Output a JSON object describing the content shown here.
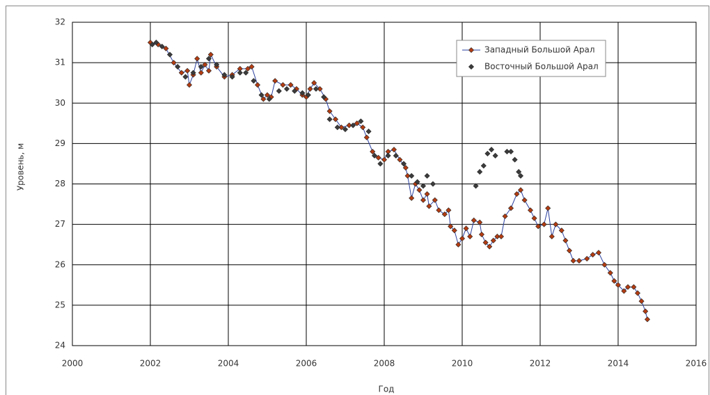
{
  "chart_data": {
    "type": "scatter",
    "xlabel": "Год",
    "ylabel": "Уровень, м",
    "xlim": [
      2000,
      2016
    ],
    "xticks": [
      2000,
      2002,
      2004,
      2006,
      2008,
      2010,
      2012,
      2014,
      2016
    ],
    "ylim": [
      24,
      32
    ],
    "yticks": [
      24,
      25,
      26,
      27,
      28,
      29,
      30,
      31,
      32
    ],
    "grid": true,
    "legend": "upper right",
    "series": [
      {
        "name": "Западный Большой Арал",
        "color": "#2a3f9e",
        "marker_color": "#b33c12",
        "line": true,
        "x": [
          2002.0,
          2002.2,
          2002.4,
          2002.6,
          2002.8,
          2002.95,
          2003.0,
          2003.1,
          2003.2,
          2003.3,
          2003.4,
          2003.5,
          2003.55,
          2003.7,
          2003.9,
          2004.1,
          2004.3,
          2004.5,
          2004.6,
          2004.75,
          2004.9,
          2005.0,
          2005.1,
          2005.2,
          2005.4,
          2005.6,
          2005.75,
          2005.9,
          2006.0,
          2006.1,
          2006.2,
          2006.35,
          2006.5,
          2006.6,
          2006.75,
          2006.9,
          2007.1,
          2007.3,
          2007.45,
          2007.55,
          2007.7,
          2007.85,
          2008.0,
          2008.1,
          2008.25,
          2008.4,
          2008.55,
          2008.6,
          2008.7,
          2008.8,
          2008.9,
          2009.0,
          2009.1,
          2009.15,
          2009.3,
          2009.4,
          2009.55,
          2009.65,
          2009.7,
          2009.8,
          2009.9,
          2010.0,
          2010.1,
          2010.2,
          2010.3,
          2010.45,
          2010.5,
          2010.6,
          2010.7,
          2010.8,
          2010.9,
          2011.0,
          2011.1,
          2011.25,
          2011.4,
          2011.5,
          2011.6,
          2011.75,
          2011.85,
          2011.95,
          2012.1,
          2012.2,
          2012.3,
          2012.4,
          2012.55,
          2012.65,
          2012.75,
          2012.85,
          2013.0,
          2013.2,
          2013.35,
          2013.5,
          2013.65,
          2013.8,
          2013.9,
          2014.0,
          2014.15,
          2014.25,
          2014.4,
          2014.5,
          2014.6,
          2014.7,
          2014.75
        ],
        "values": [
          31.5,
          31.45,
          31.35,
          31.0,
          30.75,
          30.8,
          30.45,
          30.7,
          31.1,
          30.75,
          30.95,
          30.8,
          31.2,
          30.9,
          30.65,
          30.7,
          30.85,
          30.85,
          30.9,
          30.45,
          30.1,
          30.2,
          30.15,
          30.55,
          30.45,
          30.45,
          30.35,
          30.2,
          30.15,
          30.35,
          30.5,
          30.35,
          30.1,
          29.8,
          29.6,
          29.4,
          29.45,
          29.5,
          29.4,
          29.15,
          28.8,
          28.65,
          28.6,
          28.8,
          28.85,
          28.6,
          28.4,
          28.2,
          27.65,
          28.0,
          27.85,
          27.6,
          27.75,
          27.45,
          27.6,
          27.35,
          27.25,
          27.35,
          26.95,
          26.85,
          26.5,
          26.65,
          26.9,
          26.7,
          27.1,
          27.05,
          26.75,
          26.55,
          26.45,
          26.6,
          26.7,
          26.7,
          27.2,
          27.4,
          27.75,
          27.85,
          27.6,
          27.35,
          27.15,
          26.95,
          27.0,
          27.4,
          26.7,
          27.0,
          26.85,
          26.6,
          26.35,
          26.1,
          26.1,
          26.15,
          26.25,
          26.3,
          26.0,
          25.8,
          25.6,
          25.5,
          25.35,
          25.45,
          25.45,
          25.3,
          25.1,
          24.85,
          24.65
        ]
      },
      {
        "name": "Восточный Большой Арал",
        "color": "#3c3c3c",
        "marker_color": "#3c3c3c",
        "line": false,
        "x": [
          2002.05,
          2002.15,
          2002.3,
          2002.5,
          2002.7,
          2002.9,
          2003.1,
          2003.3,
          2003.5,
          2003.7,
          2003.9,
          2004.1,
          2004.3,
          2004.45,
          2004.65,
          2004.85,
          2005.05,
          2005.3,
          2005.5,
          2005.7,
          2005.9,
          2006.05,
          2006.25,
          2006.45,
          2006.6,
          2006.8,
          2007.0,
          2007.2,
          2007.4,
          2007.6,
          2007.75,
          2007.9,
          2008.1,
          2008.3,
          2008.5,
          2008.7,
          2008.85,
          2009.0,
          2009.1,
          2009.25,
          2010.35,
          2010.45,
          2010.55,
          2010.65,
          2010.75,
          2010.85,
          2011.15,
          2011.25,
          2011.35,
          2011.45,
          2011.5
        ],
        "values": [
          31.45,
          31.5,
          31.4,
          31.2,
          30.9,
          30.65,
          30.75,
          30.9,
          31.1,
          30.95,
          30.7,
          30.65,
          30.75,
          30.75,
          30.55,
          30.2,
          30.1,
          30.3,
          30.35,
          30.3,
          30.25,
          30.2,
          30.35,
          30.15,
          29.6,
          29.4,
          29.35,
          29.45,
          29.55,
          29.3,
          28.7,
          28.5,
          28.7,
          28.7,
          28.5,
          28.2,
          28.05,
          27.95,
          28.2,
          28.0,
          27.95,
          28.3,
          28.45,
          28.75,
          28.85,
          28.7,
          28.8,
          28.8,
          28.6,
          28.3,
          28.2
        ]
      }
    ]
  }
}
